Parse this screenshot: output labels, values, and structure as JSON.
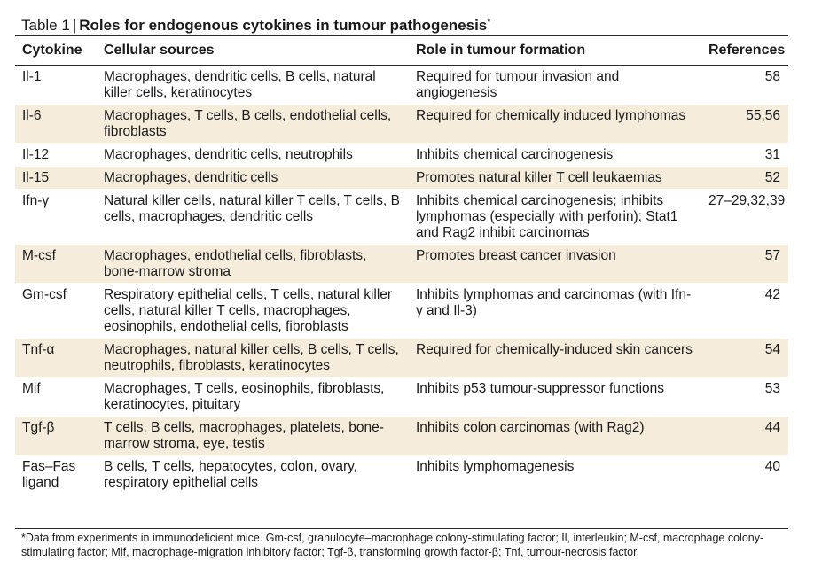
{
  "caption": {
    "label": "Table 1",
    "separator": "|",
    "title": "Roles for endogenous cytokines in tumour pathogenesis",
    "marker": "*"
  },
  "columns": {
    "cytokine": "Cytokine",
    "sources": "Cellular sources",
    "role": "Role in tumour formation",
    "references": "References"
  },
  "rows": [
    {
      "cytokine": "Il-1",
      "sources": "Macrophages, dendritic cells, B cells, natural killer cells, keratinocytes",
      "role": "Required for tumour invasion and angiogenesis",
      "references": "58",
      "shaded": false
    },
    {
      "cytokine": "Il-6",
      "sources": "Macrophages, T cells, B cells, endothelial cells, fibroblasts",
      "role": "Required for chemically induced lymphomas",
      "references": "55,56",
      "shaded": true
    },
    {
      "cytokine": "Il-12",
      "sources": "Macrophages, dendritic cells, neutrophils",
      "role": "Inhibits chemical carcinogenesis",
      "references": "31",
      "shaded": false
    },
    {
      "cytokine": "Il-15",
      "sources": "Macrophages, dendritic cells",
      "role": "Promotes natural killer T cell leukaemias",
      "references": "52",
      "shaded": true
    },
    {
      "cytokine": "Ifn-γ",
      "sources": "Natural killer cells, natural killer T cells, T cells, B cells, macrophages, dendritic cells",
      "role": "Inhibits chemical carcinogenesis; inhibits lymphomas (especially with perforin); Stat1 and Rag2 inhibit carcinomas",
      "references": "27–29,32,39",
      "shaded": false
    },
    {
      "cytokine": "M-csf",
      "sources": "Macrophages, endothelial cells, fibroblasts, bone-marrow stroma",
      "role": "Promotes breast cancer invasion",
      "references": "57",
      "shaded": true
    },
    {
      "cytokine": "Gm-csf",
      "sources": "Respiratory epithelial cells, T cells, natural killer cells, natural killer T cells, macrophages, eosinophils, endothelial cells, fibroblasts",
      "role": "Inhibits lymphomas and carcinomas (with Ifn-γ and Il-3)",
      "references": "42",
      "shaded": false
    },
    {
      "cytokine": "Tnf-α",
      "sources": "Macrophages, natural killer cells, B cells, T cells, neutrophils, fibroblasts, keratinocytes",
      "role": "Required for chemically-induced skin cancers",
      "references": "54",
      "shaded": true
    },
    {
      "cytokine": "Mif",
      "sources": "Macrophages, T cells, eosinophils, fibroblasts, keratinocytes, pituitary",
      "role": "Inhibits p53 tumour-suppressor functions",
      "references": "53",
      "shaded": false
    },
    {
      "cytokine": "Tgf-β",
      "sources": "T cells, B cells, macrophages, platelets, bone-marrow stroma, eye, testis",
      "role": "Inhibits colon carcinomas (with Rag2)",
      "references": "44",
      "shaded": true
    },
    {
      "cytokine": "Fas–Fas ligand",
      "sources": "B cells, T cells, hepatocytes, colon, ovary, respiratory epithelial cells",
      "role": "Inhibits lymphomagenesis",
      "references": "40",
      "shaded": false
    }
  ],
  "footnote": "*Data from experiments in immunodeficient mice. Gm-csf, granulocyte–macrophage colony-stimulating factor; Il, interleukin; M-csf, macrophage colony-stimulating factor; Mif, macrophage-migration inhibitory factor; Tgf-β, transforming growth factor-β; Tnf, tumour-necrosis factor.",
  "colors": {
    "row_shade": "#f6ecdc",
    "rule": "#2a2a2a",
    "text": "#1a1a1a"
  }
}
